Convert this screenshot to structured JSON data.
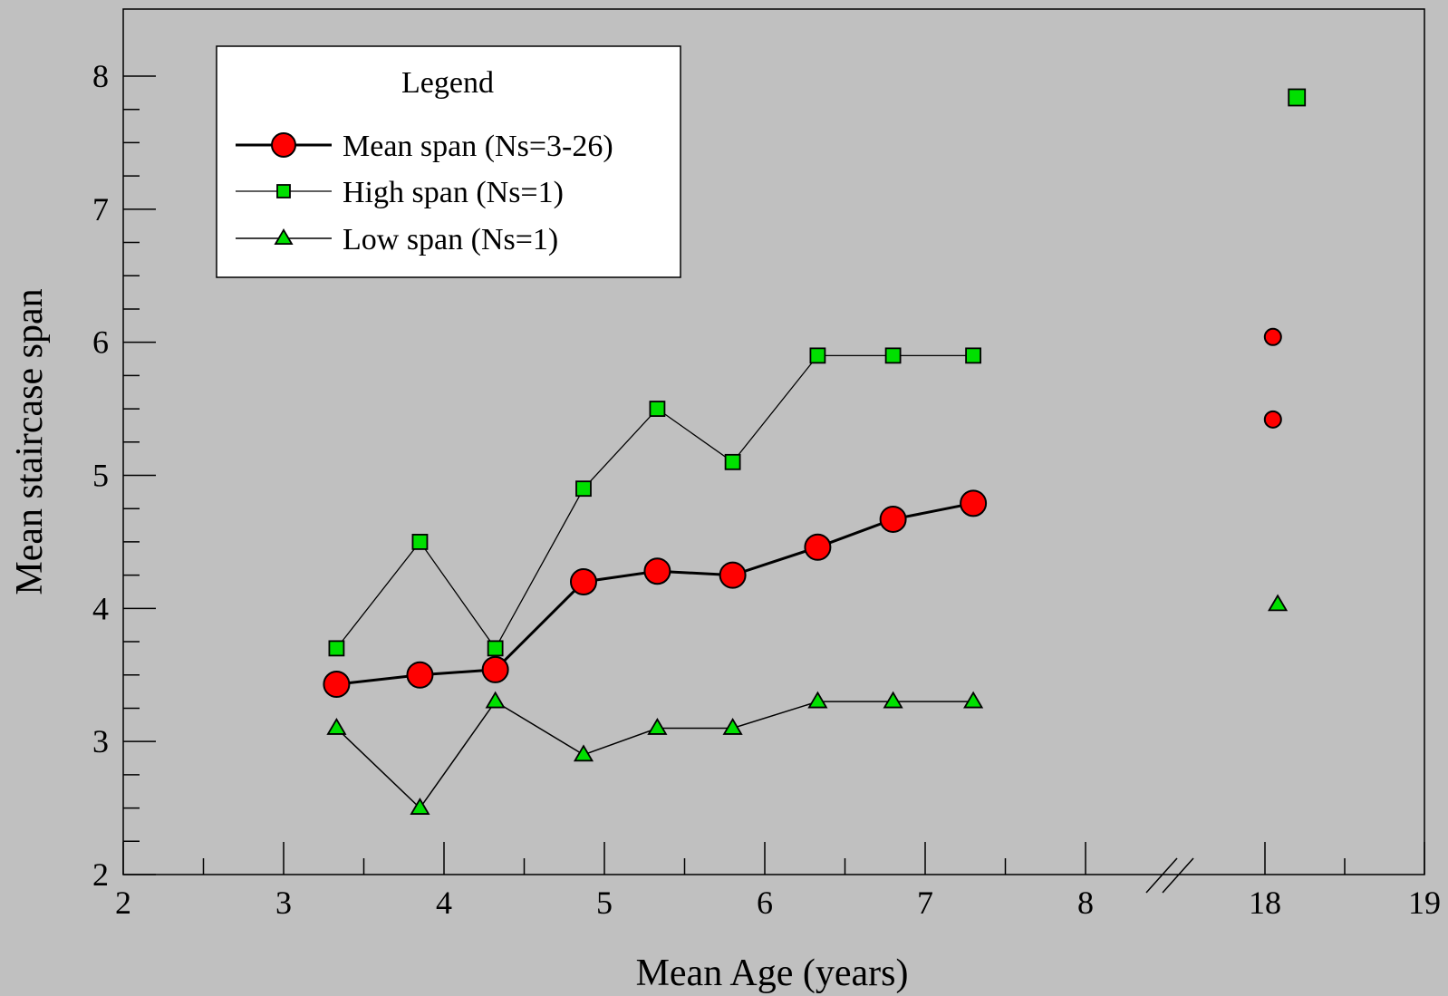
{
  "chart_data": {
    "type": "line",
    "xlabel": "Mean Age (years)",
    "ylabel": "Mean staircase span",
    "xlim": [
      2,
      19
    ],
    "ylim": [
      2,
      8.4
    ],
    "x_axis_break": {
      "from": 8,
      "to": 18
    },
    "x_tick_labels": [
      "2",
      "3",
      "4",
      "5",
      "6",
      "7",
      "8",
      "18",
      "19"
    ],
    "y_tick_labels": [
      "2",
      "3",
      "4",
      "5",
      "6",
      "7",
      "8"
    ],
    "grid": false,
    "legend": {
      "title": "Legend",
      "placement": "top-left",
      "entries": [
        "Mean span (Ns=3-26)",
        "High span (Ns=1)",
        "Low span (Ns=1)"
      ]
    },
    "series": [
      {
        "name": "Mean span (Ns=3-26)",
        "marker": "circle",
        "color": "#ff0000",
        "x": [
          3.33,
          3.85,
          4.32,
          4.87,
          5.33,
          5.8,
          6.33,
          6.8,
          7.3
        ],
        "y": [
          3.43,
          3.5,
          3.54,
          4.2,
          4.28,
          4.25,
          4.46,
          4.67,
          4.79
        ]
      },
      {
        "name": "High span (Ns=1)",
        "marker": "square",
        "color": "#00e000",
        "x": [
          3.33,
          3.85,
          4.32,
          4.87,
          5.33,
          5.8,
          6.33,
          6.8,
          7.3
        ],
        "y": [
          3.7,
          4.5,
          3.7,
          4.9,
          5.5,
          5.1,
          5.9,
          5.9,
          5.9
        ]
      },
      {
        "name": "Low span (Ns=1)",
        "marker": "triangle",
        "color": "#00e000",
        "x": [
          3.33,
          3.85,
          4.32,
          4.87,
          5.33,
          5.8,
          6.33,
          6.8,
          7.3
        ],
        "y": [
          3.1,
          2.5,
          3.3,
          2.9,
          3.1,
          3.1,
          3.3,
          3.3,
          3.3
        ]
      }
    ],
    "adult_points": [
      {
        "marker": "circle",
        "color": "#ff0000",
        "x": 18.05,
        "y": 6.04
      },
      {
        "marker": "circle",
        "color": "#ff0000",
        "x": 18.05,
        "y": 5.42
      },
      {
        "marker": "square",
        "color": "#00e000",
        "x": 18.2,
        "y": 7.84
      },
      {
        "marker": "triangle",
        "color": "#00e000",
        "x": 18.08,
        "y": 4.03
      }
    ]
  }
}
